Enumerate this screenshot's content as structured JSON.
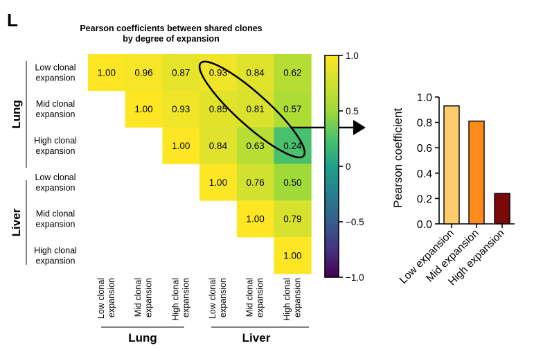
{
  "panel_label": "L",
  "chart_data": [
    {
      "type": "heatmap",
      "title": [
        "Pearson  coefficients between shared clones",
        "by degree of expansion"
      ],
      "row_labels": [
        [
          "Low clonal",
          "expansion"
        ],
        [
          "Mid clonal",
          "expansion"
        ],
        [
          "High clonal",
          "expansion"
        ],
        [
          "Low clonal",
          "expansion"
        ],
        [
          "Mid clonal",
          "expansion"
        ],
        [
          "High clonal",
          "expansion"
        ]
      ],
      "col_labels": [
        [
          "Low clonal",
          "expansion"
        ],
        [
          "Mid clonal",
          "expansion"
        ],
        [
          "High clonal",
          "expansion"
        ],
        [
          "Low clonal",
          "expansion"
        ],
        [
          "Mid clonal",
          "expansion"
        ],
        [
          "High clonal",
          "expansion"
        ]
      ],
      "row_groups": [
        "Lung",
        "Liver"
      ],
      "col_groups": [
        "Lung",
        "Liver"
      ],
      "values": [
        [
          1.0,
          0.96,
          0.87,
          0.93,
          0.84,
          0.62
        ],
        [
          null,
          1.0,
          0.93,
          0.85,
          0.81,
          0.57
        ],
        [
          null,
          null,
          1.0,
          0.84,
          0.63,
          0.24
        ],
        [
          null,
          null,
          null,
          1.0,
          0.76,
          0.5
        ],
        [
          null,
          null,
          null,
          null,
          1.0,
          0.79
        ],
        [
          null,
          null,
          null,
          null,
          null,
          1.0
        ]
      ],
      "value_labels": [
        [
          "1.00",
          "0.96",
          "0.87",
          "0.93",
          "0.84",
          "0.62"
        ],
        [
          "",
          "1.00",
          "0.93",
          "0.85",
          "0.81",
          "0.57"
        ],
        [
          "",
          "",
          "1.00",
          "0.84",
          "0.63",
          "0.24"
        ],
        [
          "",
          "",
          "",
          "1.00",
          "0.76",
          "0.50"
        ],
        [
          "",
          "",
          "",
          "",
          "1.00",
          "0.79"
        ],
        [
          "",
          "",
          "",
          "",
          "",
          "1.00"
        ]
      ],
      "colorbar": {
        "range": [
          -1.0,
          1.0
        ],
        "ticks": [
          1.0,
          0.5,
          0,
          -0.5,
          -1.0
        ],
        "tick_labels": [
          "1.0",
          "0.5",
          "0",
          "−0.5",
          "−1.0"
        ],
        "colormap": "viridis"
      },
      "highlight": "diagonal ellipse around Lung-vs-Liver matched expansion cells (0.93, 0.81, 0.24)"
    },
    {
      "type": "bar",
      "categories": [
        "Low expansion",
        "Mid expansion",
        "High expansion"
      ],
      "values": [
        0.93,
        0.81,
        0.24
      ],
      "colors": [
        "#FDCB6E",
        "#FF8C1A",
        "#7A0A0A"
      ],
      "ylabel": "Pearson coefficient",
      "ylim": [
        0.0,
        1.0
      ],
      "yticks": [
        0.0,
        0.2,
        0.4,
        0.6,
        0.8,
        1.0
      ],
      "ytick_labels": [
        "0.0",
        "0.2",
        "0.4",
        "0.6",
        "0.8",
        "1.0"
      ],
      "xlabel": ""
    }
  ]
}
